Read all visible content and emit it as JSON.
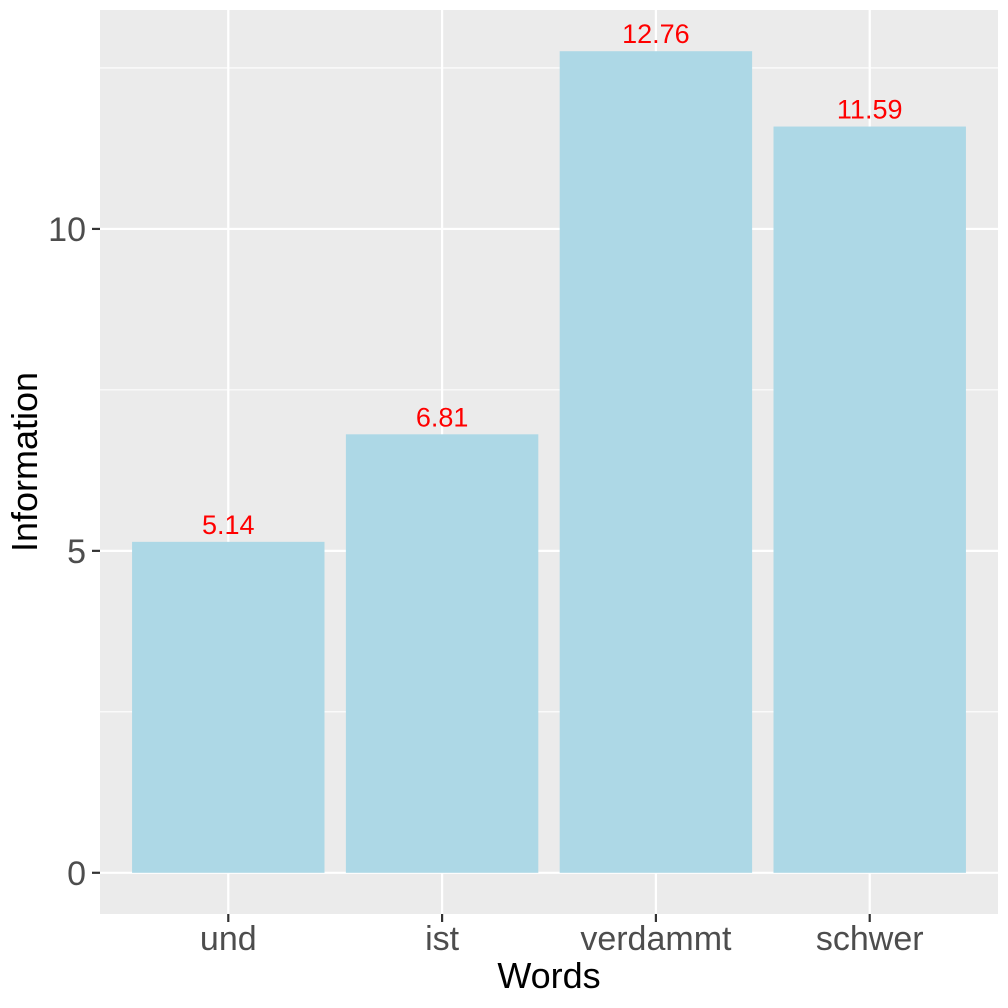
{
  "chart_data": {
    "type": "bar",
    "title": "",
    "xlabel": "Words",
    "ylabel": "Information",
    "categories": [
      "und",
      "ist",
      "verdammt",
      "schwer"
    ],
    "values": [
      5.14,
      6.81,
      12.76,
      11.59
    ],
    "data_labels": [
      "5.14",
      "6.81",
      "12.76",
      "11.59"
    ],
    "ylim": [
      -0.64,
      13.4
    ],
    "y_ticks": [
      0,
      5,
      10
    ],
    "y_tick_labels": [
      "0",
      "5",
      "10"
    ],
    "y_minor_ticks": [
      2.5,
      7.5,
      12.5
    ],
    "grid": true,
    "legend": "none",
    "colors": {
      "bar": "#ADD8E6",
      "data_label": "#FF0000",
      "panel_background": "#EBEBEB",
      "grid": "#FFFFFF",
      "tick_label": "#4D4D4D",
      "axis_title": "#000000"
    }
  }
}
